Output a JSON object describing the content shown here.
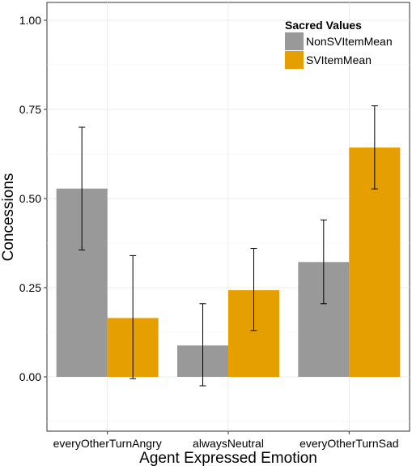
{
  "chart_data": {
    "type": "bar",
    "title": "",
    "xlabel": "Agent Expressed Emotion",
    "ylabel": "Concessions",
    "categories": [
      "everyOtherTurnAngry",
      "alwaysNeutral",
      "everyOtherTurnSad"
    ],
    "yticks": [
      "0.00",
      "0.25",
      "0.50",
      "0.75",
      "1.00"
    ],
    "ylim": [
      -0.15,
      1.05
    ],
    "grid": true,
    "legend": {
      "title": "Sacred Values",
      "position": "top-right"
    },
    "series": [
      {
        "name": "NonSVItemMean",
        "color": "#999999",
        "values": [
          0.528,
          0.088,
          0.322
        ],
        "err_low": [
          0.356,
          -0.025,
          0.205
        ],
        "err_high": [
          0.7,
          0.205,
          0.44
        ]
      },
      {
        "name": "SVItemMean",
        "color": "#E69F00",
        "values": [
          0.165,
          0.243,
          0.643
        ],
        "err_low": [
          -0.005,
          0.13,
          0.527
        ],
        "err_high": [
          0.34,
          0.36,
          0.76
        ]
      }
    ]
  }
}
